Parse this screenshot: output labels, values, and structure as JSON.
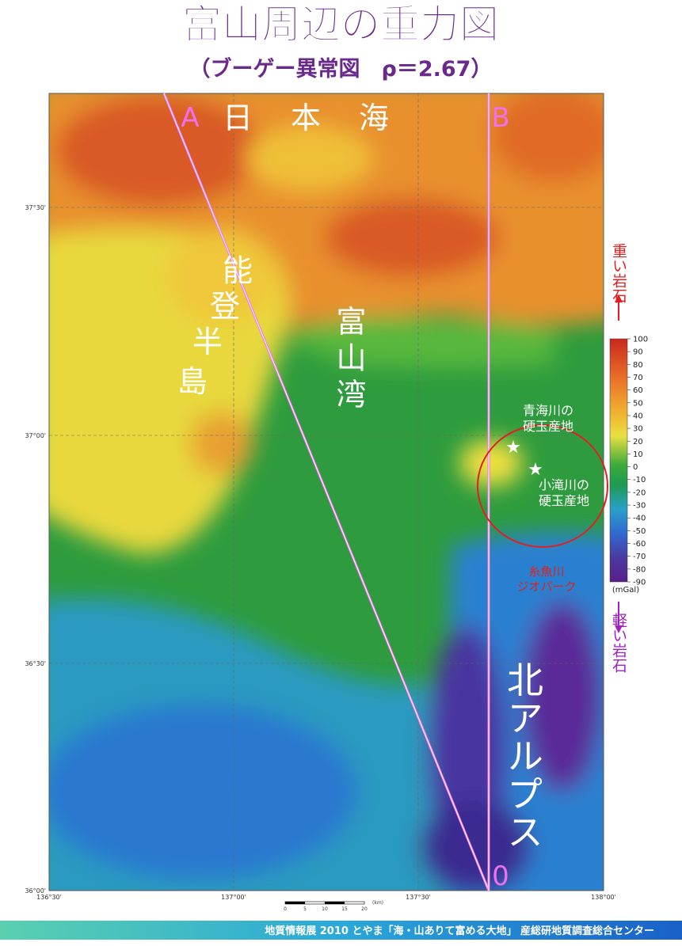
{
  "header": {
    "title": "富山周辺の重力図",
    "subtitle": "（ブーゲー異常図　ρ＝2.67）"
  },
  "map": {
    "line_a": "A",
    "line_b": "B",
    "line_end": "0",
    "sea": "日本海",
    "peninsula": [
      "能",
      "登",
      "半",
      "島"
    ],
    "bay": "富山湾",
    "alps": "北アルプス",
    "site_1": [
      "青海川の",
      "硬玉産地"
    ],
    "site_2": [
      "小滝川の",
      "硬玉産地"
    ],
    "geopark": [
      "糸魚川",
      "ジオパーク"
    ],
    "lat_labels": [
      "37°30'",
      "37°00'",
      "36°30'",
      "36°00'"
    ],
    "lon_labels": [
      "136°30'",
      "137°00'",
      "137°30'",
      "138°00'"
    ],
    "scale": {
      "ticks": [
        0,
        5,
        10,
        15,
        20
      ],
      "unit": "(km)"
    }
  },
  "colorbar": {
    "heavy": "重い岩石",
    "light": "軽い岩石",
    "unit": "(mGal)",
    "ticks": [
      100,
      90,
      80,
      70,
      60,
      50,
      40,
      30,
      20,
      10,
      0,
      -10,
      -20,
      -30,
      -40,
      -50,
      -60,
      -70,
      -80,
      -90
    ]
  },
  "footer": {
    "text": "地質情報展 2010 とやま「海・山ありて富める大地」 産総研地質調査総合センター"
  }
}
